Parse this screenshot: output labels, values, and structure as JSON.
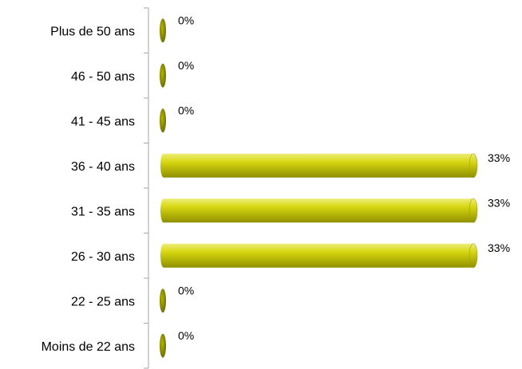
{
  "chart_data": {
    "type": "bar",
    "orientation": "horizontal",
    "categories": [
      "Plus de 50 ans",
      "46 - 50 ans",
      "41 - 45 ans",
      "36 - 40 ans",
      "31 - 35 ans",
      "26 - 30 ans",
      "22 - 25 ans",
      "Moins de 22 ans"
    ],
    "values": [
      0,
      0,
      0,
      33,
      33,
      33,
      0,
      0
    ],
    "data_labels": [
      "0%",
      "0%",
      "0%",
      "33%",
      "33%",
      "33%",
      "0%",
      "0%"
    ],
    "title": "",
    "xlabel": "",
    "ylabel": "",
    "xlim": [
      0,
      40
    ],
    "grid": false,
    "legend": "none",
    "bar_color": "#c8c800",
    "bar_color_dark": "#8a8a00",
    "bar_color_light": "#f0f090",
    "axis_color": "#a6a6a6"
  }
}
